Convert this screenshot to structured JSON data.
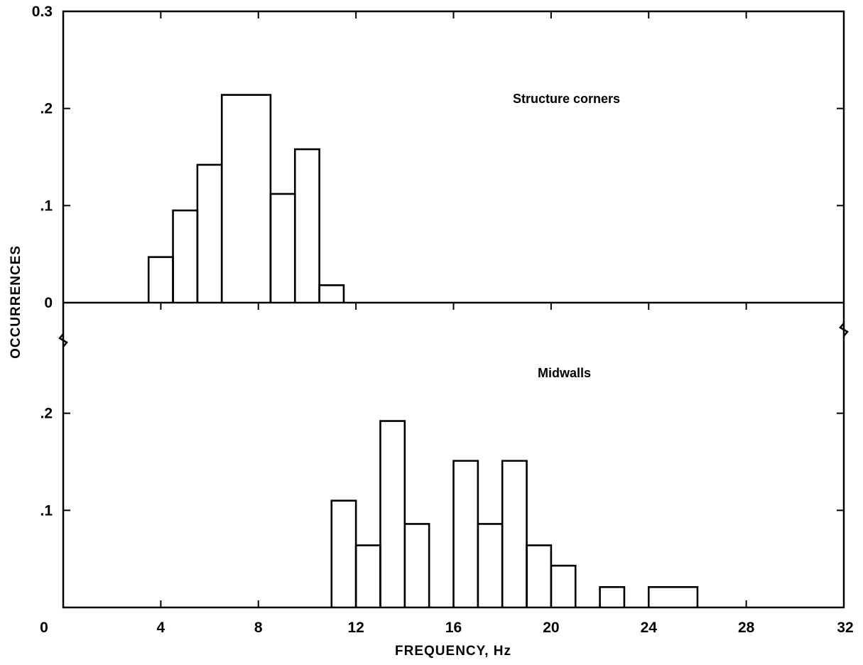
{
  "chart_data": [
    {
      "type": "histogram",
      "panel": "top",
      "label": "Structure corners",
      "xlim": [
        0,
        32
      ],
      "ylim": [
        0,
        0.3
      ],
      "y_ticks": [
        0,
        0.1,
        0.2,
        0.3
      ],
      "y_tick_labels": [
        "0",
        ".1",
        ".2",
        "0.3"
      ],
      "bins": [
        {
          "x0": 3.5,
          "x1": 4.5,
          "value": 0.047
        },
        {
          "x0": 4.5,
          "x1": 5.5,
          "value": 0.095
        },
        {
          "x0": 5.5,
          "x1": 6.5,
          "value": 0.142
        },
        {
          "x0": 6.5,
          "x1": 8.5,
          "value": 0.214
        },
        {
          "x0": 8.5,
          "x1": 9.5,
          "value": 0.112
        },
        {
          "x0": 9.5,
          "x1": 10.5,
          "value": 0.158
        },
        {
          "x0": 10.5,
          "x1": 11.5,
          "value": 0.018
        }
      ]
    },
    {
      "type": "histogram",
      "panel": "bottom",
      "label": "Midwalls",
      "xlim": [
        0,
        32
      ],
      "ylim": [
        0,
        0.3
      ],
      "y_ticks": [
        0.1,
        0.2
      ],
      "y_tick_labels": [
        ".1",
        ".2"
      ],
      "bins": [
        {
          "x0": 11,
          "x1": 12,
          "value": 0.11
        },
        {
          "x0": 12,
          "x1": 13,
          "value": 0.064
        },
        {
          "x0": 13,
          "x1": 14,
          "value": 0.192
        },
        {
          "x0": 14,
          "x1": 15,
          "value": 0.086
        },
        {
          "x0": 16,
          "x1": 17,
          "value": 0.151
        },
        {
          "x0": 17,
          "x1": 18,
          "value": 0.086
        },
        {
          "x0": 18,
          "x1": 19,
          "value": 0.151
        },
        {
          "x0": 19,
          "x1": 20,
          "value": 0.064
        },
        {
          "x0": 20,
          "x1": 21,
          "value": 0.043
        },
        {
          "x0": 22,
          "x1": 23,
          "value": 0.021
        },
        {
          "x0": 24,
          "x1": 26,
          "value": 0.021
        }
      ]
    }
  ],
  "x_axis": {
    "label": "FREQUENCY, Hz",
    "ticks": [
      0,
      4,
      8,
      12,
      16,
      20,
      24,
      28,
      32
    ],
    "tick_labels": [
      "0",
      "4",
      "8",
      "12",
      "16",
      "20",
      "24",
      "28",
      "32"
    ]
  },
  "y_axis": {
    "label": "OCCURRENCES"
  }
}
